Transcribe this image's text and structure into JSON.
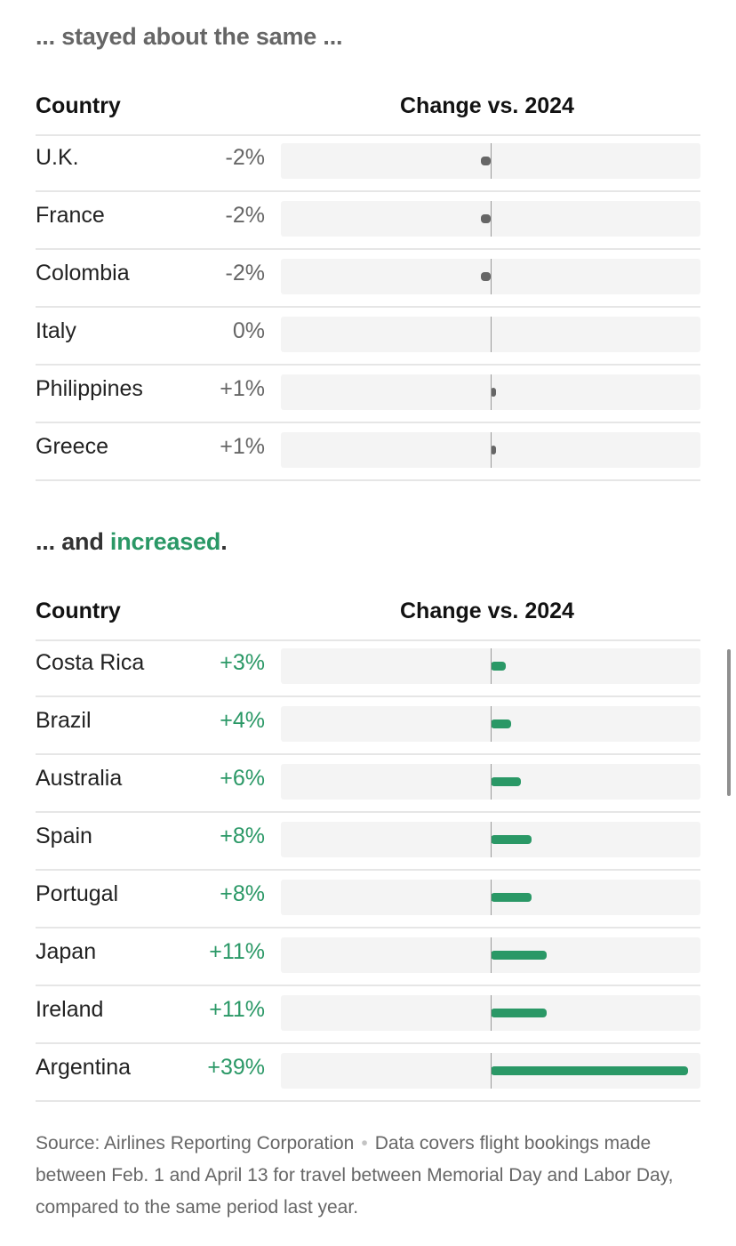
{
  "sections": [
    {
      "heading": "... stayed about the same ...",
      "col_country": "Country",
      "col_change": "Change vs. 2024"
    },
    {
      "heading_prefix": "... and ",
      "heading_highlight": "increased",
      "heading_suffix": ".",
      "col_country": "Country",
      "col_change": "Change vs. 2024"
    }
  ],
  "chart_data": [
    {
      "type": "bar",
      "xlabel": "Change vs. 2024",
      "categories": [
        "U.K.",
        "France",
        "Colombia",
        "Italy",
        "Philippines",
        "Greece"
      ],
      "labels": [
        "-2%",
        "-2%",
        "-2%",
        "0%",
        "+1%",
        "+1%"
      ],
      "values": [
        -2,
        -2,
        -2,
        0,
        1,
        1
      ],
      "xlim": [
        -40,
        40
      ]
    },
    {
      "type": "bar",
      "xlabel": "Change vs. 2024",
      "categories": [
        "Costa Rica",
        "Brazil",
        "Australia",
        "Spain",
        "Portugal",
        "Japan",
        "Ireland",
        "Argentina"
      ],
      "labels": [
        "+3%",
        "+4%",
        "+6%",
        "+8%",
        "+8%",
        "+11%",
        "+11%",
        "+39%"
      ],
      "values": [
        3,
        4,
        6,
        8,
        8,
        11,
        11,
        39
      ],
      "xlim": [
        -40,
        40
      ]
    }
  ],
  "colors": {
    "increase": "#2a9866",
    "neutral": "#666666",
    "track": "#f4f4f4"
  },
  "source": {
    "label": "Source: Airlines Reporting Corporation",
    "note": "Data covers flight bookings made between Feb. 1 and April 13 for travel between Memorial Day and Labor Day, compared to the same period last year."
  }
}
